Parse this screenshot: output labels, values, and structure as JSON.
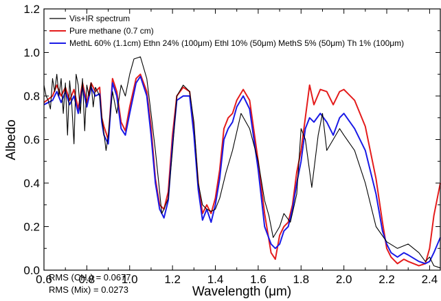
{
  "chart_data": {
    "type": "line",
    "title": "",
    "xlabel": "Wavelength (μm)",
    "ylabel": "Albedo",
    "xlim": [
      0.6,
      2.45
    ],
    "ylim": [
      0.0,
      1.2
    ],
    "xticks": [
      0.6,
      0.8,
      1.0,
      1.2,
      1.4,
      1.6,
      1.8,
      2.0,
      2.2,
      2.4
    ],
    "xtick_labels": [
      "0.6",
      "0.8",
      "1.0",
      "1.2",
      "1.4",
      "1.6",
      "1.8",
      "2.0",
      "2.2",
      "2.4"
    ],
    "yticks": [
      0.0,
      0.2,
      0.4,
      0.6,
      0.8,
      1.0,
      1.2
    ],
    "ytick_labels": [
      "0.0",
      "0.2",
      "0.4",
      "0.6",
      "0.8",
      "1.0",
      "1.2"
    ],
    "grid": false,
    "legend_position": "top-left",
    "annotations": {
      "rms_ch4_prefix": "RMS (CH",
      "rms_ch4_sub": "4",
      "rms_ch4_suffix": ") = 0.0677",
      "rms_mix": "RMS (Mix) = 0.0273"
    },
    "series": [
      {
        "name": "Vis+IR spectrum",
        "color": "#000000",
        "x": [
          0.6,
          0.61,
          0.62,
          0.63,
          0.64,
          0.65,
          0.66,
          0.67,
          0.68,
          0.69,
          0.7,
          0.71,
          0.72,
          0.73,
          0.74,
          0.75,
          0.76,
          0.77,
          0.78,
          0.79,
          0.8,
          0.81,
          0.82,
          0.83,
          0.84,
          0.85,
          0.86,
          0.87,
          0.88,
          0.89,
          0.9,
          0.92,
          0.94,
          0.96,
          0.98,
          1.0,
          1.02,
          1.05,
          1.08,
          1.1,
          1.12,
          1.14,
          1.15,
          1.16,
          1.18,
          1.2,
          1.22,
          1.25,
          1.28,
          1.3,
          1.32,
          1.34,
          1.36,
          1.38,
          1.4,
          1.42,
          1.45,
          1.48,
          1.52,
          1.56,
          1.6,
          1.63,
          1.65,
          1.67,
          1.7,
          1.72,
          1.75,
          1.78,
          1.8,
          1.82,
          1.85,
          1.88,
          1.9,
          1.92,
          1.95,
          1.98,
          2.0,
          2.05,
          2.1,
          2.15,
          2.2,
          2.25,
          2.3,
          2.35,
          2.38,
          2.4,
          2.42,
          2.45
        ],
        "y": [
          0.85,
          0.8,
          0.78,
          0.74,
          0.88,
          0.82,
          0.9,
          0.8,
          0.88,
          0.72,
          0.86,
          0.62,
          0.87,
          0.76,
          0.58,
          0.9,
          0.85,
          0.72,
          0.88,
          0.64,
          0.85,
          0.8,
          0.86,
          0.75,
          0.84,
          0.82,
          0.8,
          0.7,
          0.63,
          0.55,
          0.62,
          0.82,
          0.72,
          0.85,
          0.8,
          0.9,
          0.97,
          0.98,
          0.88,
          0.72,
          0.55,
          0.36,
          0.26,
          0.28,
          0.33,
          0.55,
          0.8,
          0.85,
          0.82,
          0.68,
          0.4,
          0.3,
          0.28,
          0.27,
          0.28,
          0.33,
          0.45,
          0.55,
          0.72,
          0.65,
          0.5,
          0.32,
          0.25,
          0.15,
          0.2,
          0.26,
          0.22,
          0.35,
          0.65,
          0.6,
          0.38,
          0.62,
          0.72,
          0.55,
          0.6,
          0.65,
          0.62,
          0.55,
          0.4,
          0.2,
          0.13,
          0.1,
          0.12,
          0.08,
          0.04,
          0.06,
          0.02,
          0.01
        ]
      },
      {
        "name": "Pure methane (0.7 cm)",
        "color": "#e41b1b",
        "x": [
          0.6,
          0.64,
          0.66,
          0.68,
          0.7,
          0.72,
          0.74,
          0.76,
          0.78,
          0.8,
          0.82,
          0.84,
          0.86,
          0.87,
          0.88,
          0.9,
          0.92,
          0.94,
          0.96,
          0.98,
          1.0,
          1.03,
          1.05,
          1.08,
          1.1,
          1.12,
          1.14,
          1.16,
          1.18,
          1.2,
          1.22,
          1.25,
          1.28,
          1.3,
          1.32,
          1.34,
          1.36,
          1.38,
          1.4,
          1.42,
          1.44,
          1.46,
          1.48,
          1.5,
          1.53,
          1.56,
          1.6,
          1.63,
          1.66,
          1.68,
          1.7,
          1.72,
          1.74,
          1.76,
          1.78,
          1.8,
          1.82,
          1.84,
          1.86,
          1.89,
          1.92,
          1.95,
          1.98,
          2.0,
          2.05,
          2.1,
          2.15,
          2.18,
          2.2,
          2.22,
          2.25,
          2.28,
          2.3,
          2.35,
          2.38,
          2.4,
          2.42,
          2.45
        ],
        "y": [
          0.77,
          0.8,
          0.85,
          0.8,
          0.84,
          0.78,
          0.83,
          0.74,
          0.86,
          0.77,
          0.86,
          0.82,
          0.84,
          0.7,
          0.66,
          0.6,
          0.88,
          0.82,
          0.68,
          0.64,
          0.75,
          0.88,
          0.9,
          0.82,
          0.66,
          0.42,
          0.3,
          0.28,
          0.36,
          0.62,
          0.8,
          0.84,
          0.82,
          0.65,
          0.4,
          0.26,
          0.3,
          0.26,
          0.33,
          0.46,
          0.65,
          0.7,
          0.72,
          0.78,
          0.83,
          0.78,
          0.5,
          0.26,
          0.08,
          0.05,
          0.16,
          0.2,
          0.22,
          0.3,
          0.45,
          0.55,
          0.7,
          0.85,
          0.76,
          0.83,
          0.82,
          0.76,
          0.82,
          0.83,
          0.78,
          0.66,
          0.42,
          0.22,
          0.1,
          0.06,
          0.03,
          0.05,
          0.04,
          0.02,
          0.03,
          0.1,
          0.25,
          0.4
        ]
      },
      {
        "name": "MethL 60% (1.1cm) Ethn 24% (100μm) Ethl 10% (50μm) MethS 5% (50μm) Th 1% (100μm)",
        "color": "#1919e6",
        "x": [
          0.6,
          0.64,
          0.66,
          0.68,
          0.7,
          0.72,
          0.74,
          0.76,
          0.78,
          0.8,
          0.82,
          0.84,
          0.86,
          0.87,
          0.88,
          0.9,
          0.92,
          0.94,
          0.96,
          0.98,
          1.0,
          1.03,
          1.05,
          1.08,
          1.1,
          1.12,
          1.14,
          1.16,
          1.18,
          1.2,
          1.22,
          1.25,
          1.28,
          1.3,
          1.32,
          1.34,
          1.36,
          1.38,
          1.4,
          1.42,
          1.44,
          1.46,
          1.48,
          1.5,
          1.53,
          1.56,
          1.6,
          1.63,
          1.66,
          1.68,
          1.7,
          1.72,
          1.74,
          1.76,
          1.78,
          1.8,
          1.82,
          1.84,
          1.86,
          1.89,
          1.92,
          1.95,
          1.98,
          2.0,
          2.05,
          2.1,
          2.15,
          2.18,
          2.2,
          2.22,
          2.25,
          2.28,
          2.3,
          2.35,
          2.38,
          2.4,
          2.42,
          2.45
        ],
        "y": [
          0.76,
          0.78,
          0.82,
          0.77,
          0.82,
          0.76,
          0.8,
          0.72,
          0.84,
          0.75,
          0.84,
          0.8,
          0.81,
          0.68,
          0.62,
          0.58,
          0.86,
          0.8,
          0.65,
          0.62,
          0.72,
          0.86,
          0.89,
          0.8,
          0.62,
          0.4,
          0.28,
          0.24,
          0.32,
          0.58,
          0.78,
          0.8,
          0.8,
          0.62,
          0.37,
          0.23,
          0.28,
          0.22,
          0.3,
          0.42,
          0.6,
          0.65,
          0.68,
          0.75,
          0.8,
          0.74,
          0.46,
          0.2,
          0.12,
          0.1,
          0.12,
          0.18,
          0.2,
          0.28,
          0.4,
          0.5,
          0.65,
          0.7,
          0.68,
          0.72,
          0.68,
          0.62,
          0.7,
          0.72,
          0.65,
          0.55,
          0.35,
          0.18,
          0.12,
          0.08,
          0.06,
          0.08,
          0.07,
          0.04,
          0.03,
          0.04,
          0.08,
          0.15
        ]
      }
    ]
  }
}
